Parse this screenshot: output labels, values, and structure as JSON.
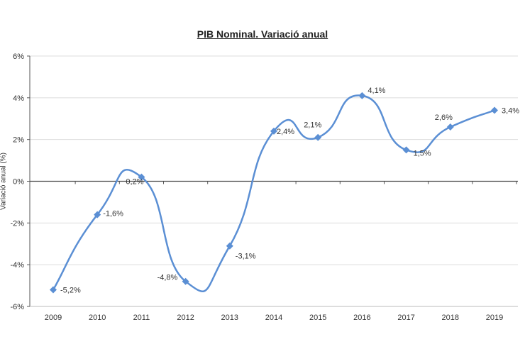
{
  "chart_data": {
    "type": "line",
    "title": "PIB Nominal. Variació anual",
    "xlabel": "",
    "ylabel": "Variació anual (%)",
    "categories": [
      "2009",
      "2010",
      "2011",
      "2012",
      "2013",
      "2014",
      "2015",
      "2016",
      "2017",
      "2018",
      "2019"
    ],
    "series": [
      {
        "name": "PIB Nominal",
        "values": [
          -5.2,
          -1.6,
          0.2,
          -4.8,
          -3.1,
          2.4,
          2.1,
          4.1,
          1.5,
          2.6,
          3.4
        ],
        "labels": [
          "-5,2%",
          "-1,6%",
          "0,2%",
          "-4,8%",
          "-3,1%",
          "2,4%",
          "2,1%",
          "4,1%",
          "1,5%",
          "2,6%",
          "3,4%"
        ],
        "color": "#5b8fd4",
        "smoothed": true,
        "marker": "diamond"
      }
    ],
    "ylim": [
      -6,
      6
    ],
    "yticks": [
      "6%",
      "4%",
      "2%",
      "0%",
      "-2%",
      "-4%",
      "-6%"
    ],
    "grid": true,
    "legend": null
  }
}
